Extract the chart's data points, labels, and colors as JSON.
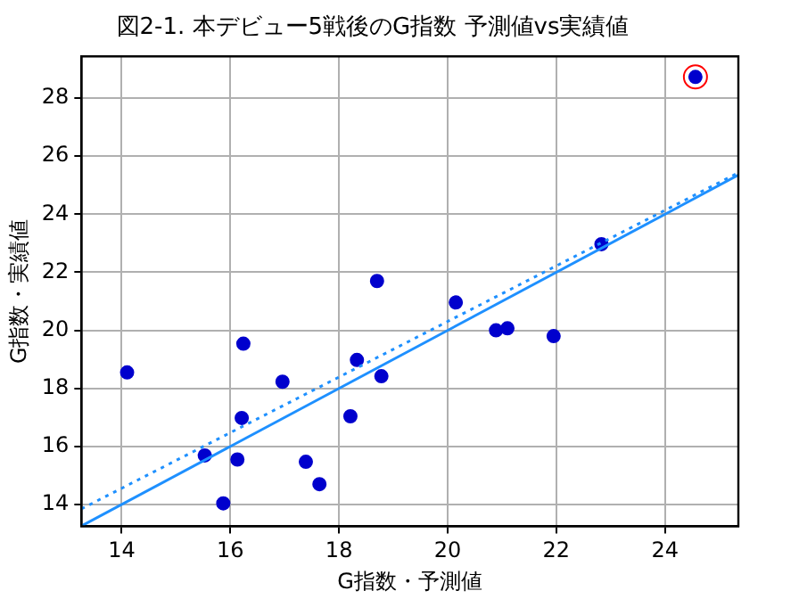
{
  "chart_data": {
    "type": "scatter",
    "title": "図2-1. 本デビュー5戦後のG指数 予測値vs実績値",
    "xlabel": "G指数・予測値",
    "ylabel": "G指数・実績値",
    "xlim": [
      13.26,
      25.35
    ],
    "ylim": [
      13.25,
      29.44
    ],
    "xticks": [
      14,
      16,
      18,
      20,
      22,
      24
    ],
    "yticks": [
      14,
      16,
      18,
      20,
      22,
      24,
      26,
      28
    ],
    "grid": true,
    "legend": false,
    "marker": "circle",
    "series": [
      {
        "type": "line",
        "color": "#1e90ff",
        "line_style": "solid",
        "marker": "none",
        "x": [
          13.26,
          25.35
        ],
        "values": [
          13.26,
          25.35
        ]
      },
      {
        "type": "line",
        "color": "#1e90ff",
        "line_style": "dotted",
        "marker": "none",
        "x": [
          13.26,
          25.35
        ],
        "values": [
          13.85,
          25.43
        ]
      },
      {
        "color": "#0000cd",
        "x": [
          14.1,
          15.53,
          15.87,
          16.13,
          16.21,
          16.24,
          16.96,
          17.39,
          17.64,
          18.21,
          18.33,
          18.78,
          18.7,
          20.15,
          20.89,
          21.1,
          21.95,
          22.83,
          24.56
        ],
        "values": [
          18.55,
          15.69,
          14.04,
          15.55,
          16.98,
          19.54,
          18.23,
          15.47,
          14.7,
          17.04,
          18.98,
          18.42,
          21.7,
          20.96,
          20.0,
          20.07,
          19.8,
          22.97,
          28.73
        ]
      },
      {
        "color": "#ff0000",
        "x": [
          24.56
        ],
        "values": [
          28.73
        ]
      }
    ]
  }
}
